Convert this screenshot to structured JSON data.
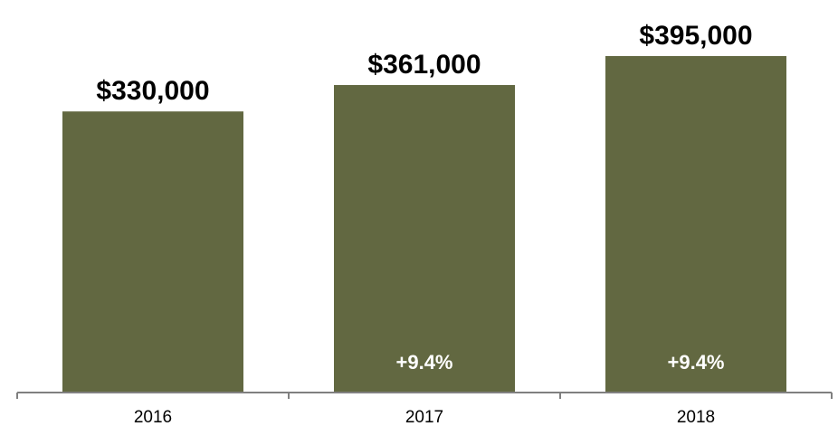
{
  "chart_data": {
    "type": "bar",
    "categories": [
      "2016",
      "2017",
      "2018"
    ],
    "values": [
      330000,
      361000,
      395000
    ],
    "value_labels": [
      "$330,000",
      "$361,000",
      "$395,000"
    ],
    "change_labels": [
      "",
      "+9.4%",
      "+9.4%"
    ],
    "ylim": [
      0,
      395000
    ],
    "grid": false,
    "legend": "none",
    "title": "",
    "xlabel": "",
    "ylabel": "",
    "bar_color": "#626841",
    "axis_color": "#808080"
  }
}
